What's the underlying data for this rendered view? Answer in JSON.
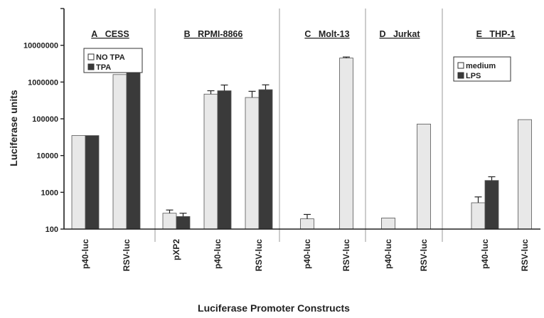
{
  "chart_data": {
    "type": "bar",
    "ylabel": "Luciferase units",
    "xlabel": "Luciferase Promoter Constructs",
    "yscale": "log",
    "ylim": [
      100,
      100000000
    ],
    "yticks": [
      {
        "value": 100,
        "label": "100"
      },
      {
        "value": 1000,
        "label": "1000"
      },
      {
        "value": 10000,
        "label": "10000"
      },
      {
        "value": 100000,
        "label": "100000"
      },
      {
        "value": 1000000,
        "label": "1000000"
      },
      {
        "value": 10000000,
        "label": "10000000"
      }
    ],
    "colors": {
      "light": "#e8e8e8",
      "dark": "#3a3a3a",
      "axis": "#222222",
      "separator": "#999999"
    },
    "panels": [
      {
        "title": "A CESS",
        "legend": [
          "NO TPA",
          "TPA"
        ],
        "categories": [
          {
            "label": "p40-luc",
            "values": [
              35000,
              35000
            ],
            "errors": [
              0,
              0
            ]
          },
          {
            "label": "RSV-luc",
            "values": [
              1600000,
              2000000
            ],
            "errors": [
              0,
              0
            ]
          }
        ]
      },
      {
        "title": "B RPMI-8866",
        "legend": null,
        "categories": [
          {
            "label": "pXP2",
            "values": [
              270,
              220
            ],
            "errors": [
              60,
              50
            ]
          },
          {
            "label": "p40-luc",
            "values": [
              470000,
              580000
            ],
            "errors": [
              110000,
              250000
            ]
          },
          {
            "label": "RSV-luc",
            "values": [
              380000,
              620000
            ],
            "errors": [
              180000,
              220000
            ]
          }
        ]
      },
      {
        "title": "C Molt-13",
        "legend": null,
        "categories": [
          {
            "label": "p40-luc",
            "values": [
              190
            ],
            "errors": [
              60
            ]
          },
          {
            "label": "RSV-luc",
            "values": [
              4500000
            ],
            "errors": [
              300000
            ]
          }
        ]
      },
      {
        "title": "D Jurkat",
        "legend": null,
        "categories": [
          {
            "label": "p40-luc",
            "values": [
              200
            ],
            "errors": [
              0
            ]
          },
          {
            "label": "RSV-luc",
            "values": [
              72000
            ],
            "errors": [
              0
            ]
          }
        ]
      },
      {
        "title": "E THP-1",
        "legend": [
          "medium",
          "LPS"
        ],
        "categories": [
          {
            "label": "p40-luc",
            "values": [
              520,
              2100
            ],
            "errors": [
              230,
              550
            ]
          },
          {
            "label": "RSV-luc",
            "values": [
              95000
            ],
            "errors": [
              0
            ]
          }
        ]
      }
    ]
  }
}
